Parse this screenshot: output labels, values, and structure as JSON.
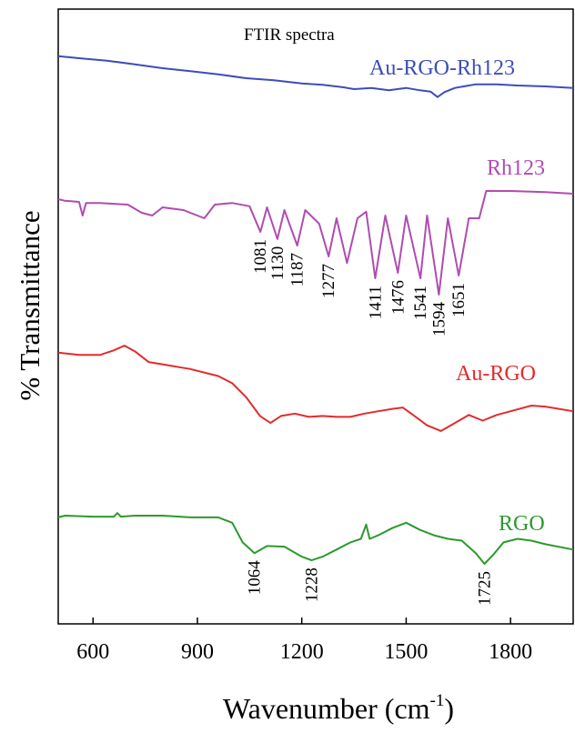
{
  "chart_data": {
    "type": "line",
    "title": "FTIR spectra",
    "xlabel": "Wavenumber (cm",
    "xlabel_sup": "-1",
    "xlabel_close": ")",
    "ylabel": "% Transmittance",
    "xlim": [
      500,
      1980
    ],
    "x_ticks": [
      600,
      900,
      1200,
      1500,
      1800
    ],
    "x_tick_labels": [
      "600",
      "900",
      "1200",
      "1500",
      "1800"
    ],
    "y_ticks_shown": false,
    "grid": false,
    "series": [
      {
        "name": "Au-RGO-Rh123",
        "color": "#3c4dbb",
        "x": [
          500,
          560,
          640,
          720,
          800,
          880,
          960,
          1040,
          1120,
          1200,
          1260,
          1320,
          1350,
          1400,
          1450,
          1500,
          1540,
          1570,
          1590,
          1610,
          1640,
          1700,
          1760,
          1820,
          1900,
          1980
        ],
        "y": [
          0.945,
          0.938,
          0.93,
          0.918,
          0.905,
          0.895,
          0.885,
          0.872,
          0.865,
          0.855,
          0.85,
          0.842,
          0.836,
          0.84,
          0.832,
          0.84,
          0.832,
          0.828,
          0.81,
          0.826,
          0.84,
          0.852,
          0.852,
          0.848,
          0.845,
          0.84
        ]
      },
      {
        "name": "Rh123",
        "color": "#b04cb0",
        "x": [
          500,
          520,
          560,
          570,
          580,
          620,
          700,
          740,
          770,
          800,
          860,
          920,
          950,
          1000,
          1050,
          1081,
          1100,
          1130,
          1150,
          1187,
          1210,
          1250,
          1277,
          1300,
          1330,
          1360,
          1385,
          1411,
          1440,
          1476,
          1500,
          1541,
          1560,
          1594,
          1620,
          1651,
          1680,
          1710,
          1730,
          1800,
          1900,
          1980
        ],
        "y": [
          0.735,
          0.732,
          0.73,
          0.705,
          0.728,
          0.728,
          0.725,
          0.71,
          0.705,
          0.72,
          0.715,
          0.7,
          0.725,
          0.728,
          0.722,
          0.675,
          0.72,
          0.662,
          0.715,
          0.65,
          0.715,
          0.69,
          0.63,
          0.7,
          0.618,
          0.7,
          0.712,
          0.59,
          0.705,
          0.6,
          0.705,
          0.59,
          0.705,
          0.56,
          0.7,
          0.595,
          0.7,
          0.7,
          0.75,
          0.75,
          0.748,
          0.745
        ]
      },
      {
        "name": "Au-RGO",
        "color": "#e32b2b",
        "x": [
          500,
          560,
          620,
          660,
          690,
          720,
          760,
          800,
          880,
          960,
          1000,
          1040,
          1080,
          1110,
          1140,
          1180,
          1220,
          1260,
          1300,
          1340,
          1380,
          1420,
          1460,
          1490,
          1520,
          1560,
          1600,
          1640,
          1680,
          1720,
          1760,
          1800,
          1860,
          1900,
          1980
        ],
        "y": [
          0.455,
          0.45,
          0.45,
          0.46,
          0.47,
          0.458,
          0.435,
          0.43,
          0.42,
          0.405,
          0.39,
          0.36,
          0.32,
          0.305,
          0.32,
          0.325,
          0.318,
          0.32,
          0.318,
          0.318,
          0.325,
          0.33,
          0.335,
          0.338,
          0.322,
          0.3,
          0.288,
          0.305,
          0.322,
          0.31,
          0.322,
          0.33,
          0.342,
          0.34,
          0.33
        ]
      },
      {
        "name": "RGO",
        "color": "#2c9a2c",
        "x": [
          500,
          520,
          600,
          660,
          670,
          680,
          720,
          800,
          880,
          960,
          1000,
          1030,
          1064,
          1100,
          1150,
          1200,
          1228,
          1260,
          1300,
          1340,
          1370,
          1385,
          1395,
          1420,
          1460,
          1500,
          1540,
          1580,
          1620,
          1660,
          1700,
          1725,
          1750,
          1780,
          1820,
          1860,
          1900,
          1980
        ],
        "y": [
          0.15,
          0.155,
          0.152,
          0.152,
          0.162,
          0.152,
          0.155,
          0.155,
          0.15,
          0.15,
          0.135,
          0.08,
          0.05,
          0.07,
          0.068,
          0.04,
          0.03,
          0.04,
          0.06,
          0.08,
          0.09,
          0.13,
          0.09,
          0.1,
          0.12,
          0.135,
          0.115,
          0.1,
          0.09,
          0.085,
          0.05,
          0.02,
          0.045,
          0.08,
          0.09,
          0.085,
          0.075,
          0.06
        ]
      }
    ],
    "peak_labels": [
      {
        "series": "Rh123",
        "x": 1081,
        "text": "1081"
      },
      {
        "series": "Rh123",
        "x": 1130,
        "text": "1130"
      },
      {
        "series": "Rh123",
        "x": 1187,
        "text": "1187"
      },
      {
        "series": "Rh123",
        "x": 1277,
        "text": "1277"
      },
      {
        "series": "Rh123",
        "x": 1411,
        "text": "1411"
      },
      {
        "series": "Rh123",
        "x": 1476,
        "text": "1476"
      },
      {
        "series": "Rh123",
        "x": 1541,
        "text": "1541"
      },
      {
        "series": "Rh123",
        "x": 1594,
        "text": "1594"
      },
      {
        "series": "Rh123",
        "x": 1651,
        "text": "1651"
      },
      {
        "series": "RGO",
        "x": 1064,
        "text": "1064"
      },
      {
        "series": "RGO",
        "x": 1228,
        "text": "1228"
      },
      {
        "series": "RGO",
        "x": 1725,
        "text": "1725"
      }
    ]
  }
}
